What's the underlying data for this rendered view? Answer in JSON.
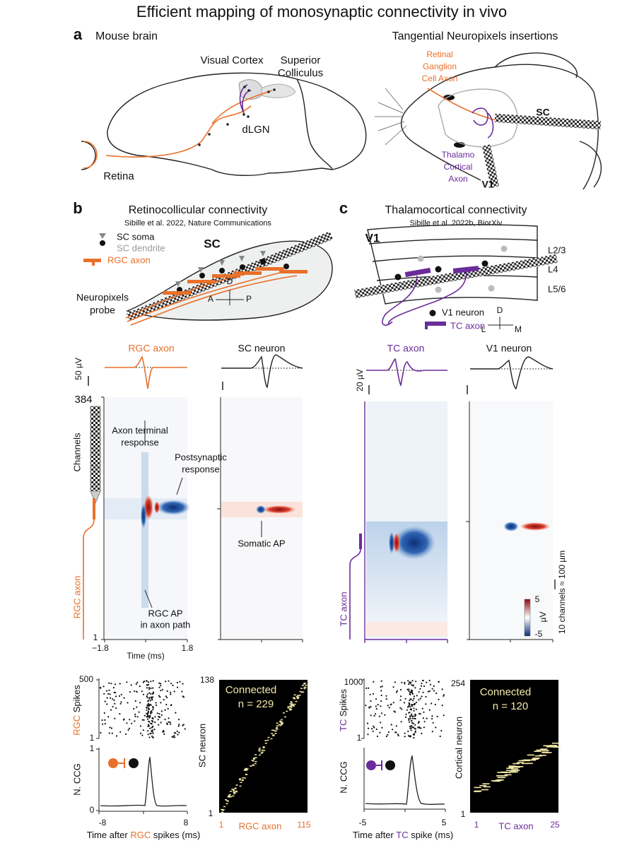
{
  "title": "Efficient mapping of monosynaptic connectivity in vivo",
  "a": {
    "label": "a",
    "left_title": "Mouse brain",
    "right_title": "Tangential Neuropixels insertions",
    "visual_cortex": "Visual Cortex",
    "superior_colliculus": [
      "Superior",
      "Colliculus"
    ],
    "dlgn": "dLGN",
    "retina": "Retina",
    "rgc_axon": [
      "Retinal",
      "Ganglion",
      "Cell Axon"
    ],
    "sc": "SC",
    "tc_axon": [
      "Thalamo",
      "Cortical",
      "Axon"
    ],
    "v1": "V1"
  },
  "b": {
    "label": "b",
    "title": "Retinocollicular connectivity",
    "citation": "Sibille et al. 2022, Nature Communications",
    "legend": [
      "SC soma",
      "SC dendrite",
      "RGC axon"
    ],
    "region": "SC",
    "probe": [
      "Neuropixels",
      "probe"
    ],
    "axes": [
      "D",
      "A",
      "P"
    ],
    "waveforms": [
      "RGC axon",
      "SC neuron"
    ],
    "scale": "50 µV",
    "channel_ticks": [
      "384",
      "1"
    ],
    "channels_label": "Channels",
    "annotations": {
      "terminal": [
        "Axon terminal",
        "response"
      ],
      "postsynaptic": [
        "Postsynaptic",
        "response"
      ],
      "somatic": "Somatic AP",
      "axon_path": [
        "RGC AP",
        "in axon path"
      ]
    },
    "axon_label": "RGC axon",
    "time_ticks": [
      "−1.8",
      "1.8"
    ],
    "time_label": "Time (ms)",
    "raster": {
      "yticks": [
        "500",
        "1"
      ],
      "ylabel": [
        "RGC",
        " Spikes"
      ]
    },
    "ccg": {
      "ylabel": "N. CCG",
      "yticks": [
        "1",
        "0"
      ],
      "xticks": [
        "-8",
        "8"
      ],
      "xlabel": [
        "Time after ",
        "RGC",
        " spikes (ms)"
      ]
    },
    "matrix": {
      "yticks": [
        "138",
        "1"
      ],
      "ylabel": "SC neuron",
      "xticks": [
        "1",
        "115"
      ],
      "xlabel": "RGC axon",
      "connected": "Connected",
      "n": "n = 229"
    }
  },
  "c": {
    "label": "c",
    "title": "Thalamocortical connectivity",
    "citation": "Sibille et al. 2022b, BiorXiv",
    "region": "V1",
    "layers": [
      "L2/3",
      "L4",
      "L5/6"
    ],
    "legend": [
      "V1 neuron",
      "TC axon"
    ],
    "axes": [
      "D",
      "L",
      "M"
    ],
    "waveforms": [
      "TC axon",
      "V1 neuron"
    ],
    "scale": "20 µV",
    "axon_label": "TC axon",
    "colorbar": {
      "ticks": [
        "5",
        "-5"
      ],
      "unit": "µV"
    },
    "scale_channels": "10 channels ≈ 100 µm",
    "raster": {
      "yticks": [
        "1000",
        "1"
      ],
      "ylabel": [
        "TC",
        " Spikes"
      ]
    },
    "ccg": {
      "ylabel": "N. CCG",
      "xticks": [
        "-5",
        "5"
      ],
      "xlabel": [
        "Time after ",
        "TC",
        " spike (ms)"
      ]
    },
    "matrix": {
      "yticks": [
        "254",
        "1"
      ],
      "ylabel": "Cortical neuron",
      "xticks": [
        "1",
        "25"
      ],
      "xlabel": "TC axon",
      "connected": "Connected",
      "n": "n = 120"
    }
  }
}
